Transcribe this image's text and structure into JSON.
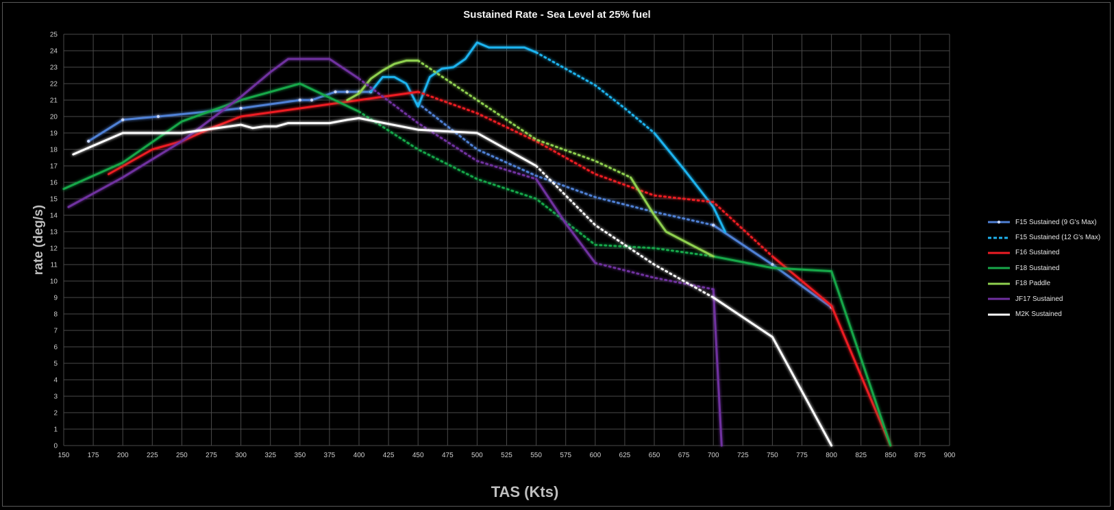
{
  "chart_data": {
    "type": "line",
    "title": "Sustained Rate - Sea Level at 25% fuel",
    "xlabel": "TAS (Kts)",
    "ylabel": "rate (deg/s)",
    "xlim": [
      150,
      900
    ],
    "ylim": [
      0,
      25
    ],
    "xticks": [
      150,
      175,
      200,
      225,
      250,
      275,
      300,
      325,
      350,
      375,
      400,
      425,
      450,
      475,
      500,
      525,
      550,
      575,
      600,
      625,
      650,
      675,
      700,
      725,
      750,
      775,
      800,
      825,
      850,
      875,
      900
    ],
    "yticks": [
      0,
      1,
      2,
      3,
      4,
      5,
      6,
      7,
      8,
      9,
      10,
      11,
      12,
      13,
      14,
      15,
      16,
      17,
      18,
      19,
      20,
      21,
      22,
      23,
      24,
      25
    ],
    "grid": true,
    "background": "#000000",
    "grid_color": "#4a4a4a",
    "legend_position": "right",
    "series": [
      {
        "name": "F15 Sustained (9 G's Max)",
        "color": "#4f81d6",
        "style": "solid-markers",
        "segments": [
          {
            "dash": false,
            "points": [
              [
                171,
                18.5
              ],
              [
                200,
                19.8
              ],
              [
                230,
                20.0
              ],
              [
                300,
                20.5
              ],
              [
                350,
                21.0
              ],
              [
                360,
                21.0
              ],
              [
                380,
                21.5
              ],
              [
                390,
                21.5
              ],
              [
                400,
                21.5
              ],
              [
                410,
                21.5
              ]
            ]
          },
          {
            "dash": true,
            "points": [
              [
                450,
                20.8
              ],
              [
                500,
                18.0
              ],
              [
                550,
                16.4
              ],
              [
                600,
                15.1
              ],
              [
                650,
                14.2
              ],
              [
                700,
                13.4
              ]
            ]
          },
          {
            "dash": false,
            "points": [
              [
                700,
                13.4
              ],
              [
                750,
                11.0
              ],
              [
                800,
                8.4
              ]
            ]
          }
        ]
      },
      {
        "name": "F15 Sustained (12 G's Max)",
        "color": "#1fb4f0",
        "style": "dashed",
        "segments": [
          {
            "dash": false,
            "points": [
              [
                410,
                21.5
              ],
              [
                420,
                22.4
              ],
              [
                430,
                22.4
              ],
              [
                440,
                22.0
              ],
              [
                450,
                20.6
              ],
              [
                460,
                22.4
              ],
              [
                470,
                22.9
              ],
              [
                480,
                23.0
              ],
              [
                490,
                23.5
              ],
              [
                500,
                24.5
              ],
              [
                510,
                24.2
              ],
              [
                520,
                24.2
              ],
              [
                530,
                24.2
              ],
              [
                540,
                24.2
              ],
              [
                550,
                23.9
              ]
            ]
          },
          {
            "dash": true,
            "points": [
              [
                550,
                23.9
              ],
              [
                575,
                22.9
              ],
              [
                600,
                21.9
              ],
              [
                625,
                20.5
              ],
              [
                650,
                19.0
              ]
            ]
          },
          {
            "dash": false,
            "points": [
              [
                650,
                19.0
              ],
              [
                675,
                16.8
              ],
              [
                700,
                14.5
              ],
              [
                710,
                13.0
              ]
            ]
          }
        ]
      },
      {
        "name": "F16 Sustained",
        "color": "#ee1c24",
        "style": "solid",
        "segments": [
          {
            "dash": false,
            "points": [
              [
                188,
                16.5
              ],
              [
                225,
                18.0
              ],
              [
                250,
                18.5
              ],
              [
                275,
                19.3
              ],
              [
                300,
                20.0
              ],
              [
                350,
                20.5
              ],
              [
                400,
                21.0
              ],
              [
                450,
                21.5
              ]
            ]
          },
          {
            "dash": true,
            "points": [
              [
                450,
                21.5
              ],
              [
                500,
                20.2
              ],
              [
                550,
                18.5
              ],
              [
                600,
                16.5
              ],
              [
                650,
                15.2
              ],
              [
                700,
                14.8
              ],
              [
                750,
                11.5
              ]
            ]
          },
          {
            "dash": false,
            "points": [
              [
                750,
                11.5
              ],
              [
                800,
                8.5
              ],
              [
                850,
                0
              ]
            ]
          }
        ]
      },
      {
        "name": "F18 Sustained",
        "color": "#18a84a",
        "style": "solid",
        "segments": [
          {
            "dash": false,
            "points": [
              [
                150,
                15.6
              ],
              [
                200,
                17.2
              ],
              [
                250,
                19.7
              ],
              [
                300,
                21.0
              ],
              [
                350,
                22.0
              ],
              [
                400,
                20.3
              ]
            ]
          },
          {
            "dash": true,
            "points": [
              [
                400,
                20.3
              ],
              [
                450,
                18.0
              ],
              [
                500,
                16.2
              ],
              [
                550,
                15.0
              ],
              [
                600,
                12.2
              ],
              [
                650,
                12.0
              ],
              [
                700,
                11.5
              ]
            ]
          },
          {
            "dash": false,
            "points": [
              [
                700,
                11.5
              ],
              [
                750,
                10.8
              ],
              [
                800,
                10.6
              ],
              [
                850,
                0
              ]
            ]
          }
        ]
      },
      {
        "name": "F18 Paddle",
        "color": "#8fd14f",
        "style": "solid",
        "segments": [
          {
            "dash": false,
            "points": [
              [
                390,
                21.0
              ],
              [
                400,
                21.4
              ],
              [
                410,
                22.3
              ],
              [
                420,
                22.8
              ],
              [
                430,
                23.2
              ],
              [
                440,
                23.4
              ],
              [
                450,
                23.4
              ]
            ]
          },
          {
            "dash": true,
            "points": [
              [
                450,
                23.4
              ],
              [
                500,
                21.0
              ],
              [
                550,
                18.6
              ],
              [
                600,
                17.3
              ],
              [
                630,
                16.3
              ]
            ]
          },
          {
            "dash": false,
            "points": [
              [
                630,
                16.3
              ],
              [
                650,
                14.0
              ],
              [
                660,
                13.0
              ],
              [
                700,
                11.5
              ]
            ]
          }
        ]
      },
      {
        "name": "JF17 Sustained",
        "color": "#7030a0",
        "style": "solid",
        "segments": [
          {
            "dash": false,
            "points": [
              [
                154,
                14.5
              ],
              [
                200,
                16.3
              ],
              [
                250,
                18.5
              ],
              [
                300,
                21.2
              ],
              [
                325,
                22.7
              ],
              [
                340,
                23.5
              ],
              [
                375,
                23.5
              ],
              [
                400,
                22.3
              ]
            ]
          },
          {
            "dash": true,
            "points": [
              [
                400,
                22.3
              ],
              [
                450,
                19.6
              ],
              [
                500,
                17.3
              ],
              [
                550,
                16.2
              ]
            ]
          },
          {
            "dash": false,
            "points": [
              [
                550,
                16.2
              ],
              [
                575,
                13.5
              ],
              [
                600,
                11.1
              ]
            ]
          },
          {
            "dash": true,
            "points": [
              [
                600,
                11.1
              ],
              [
                650,
                10.2
              ],
              [
                700,
                9.5
              ]
            ]
          },
          {
            "dash": false,
            "points": [
              [
                700,
                9.5
              ],
              [
                707,
                0
              ]
            ]
          }
        ]
      },
      {
        "name": "M2K Sustained",
        "color": "#ffffff",
        "style": "solid",
        "segments": [
          {
            "dash": false,
            "points": [
              [
                158,
                17.7
              ],
              [
                200,
                19.0
              ],
              [
                250,
                19.0
              ],
              [
                300,
                19.5
              ],
              [
                310,
                19.3
              ],
              [
                320,
                19.4
              ],
              [
                330,
                19.4
              ],
              [
                340,
                19.6
              ],
              [
                375,
                19.6
              ],
              [
                390,
                19.8
              ],
              [
                400,
                19.9
              ],
              [
                450,
                19.2
              ],
              [
                500,
                19.0
              ],
              [
                550,
                17.0
              ]
            ]
          },
          {
            "dash": true,
            "points": [
              [
                550,
                17.0
              ],
              [
                600,
                13.4
              ],
              [
                650,
                11.0
              ],
              [
                700,
                9.0
              ]
            ]
          },
          {
            "dash": false,
            "points": [
              [
                700,
                9.0
              ],
              [
                750,
                6.6
              ],
              [
                800,
                0
              ]
            ]
          }
        ]
      }
    ]
  }
}
